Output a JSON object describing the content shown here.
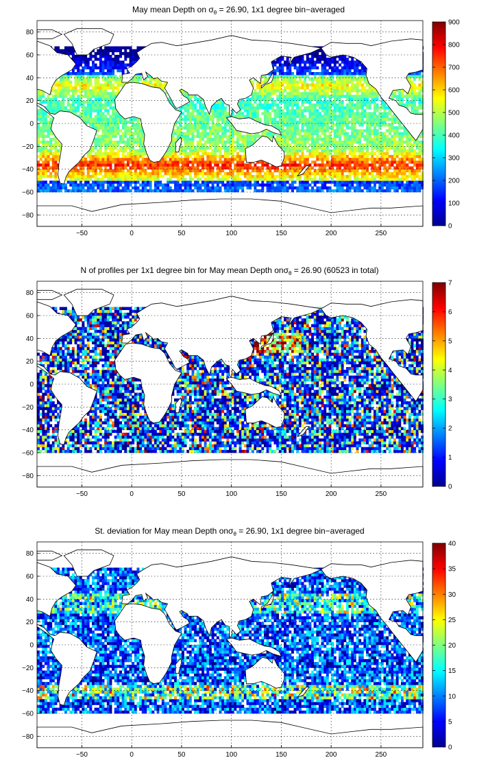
{
  "panels": [
    {
      "title_pre": "May mean Depth on ",
      "title_sigma": "σ",
      "title_sub": "θ",
      "title_post": " = 26.90, 1x1 degree bin−averaged",
      "colorbar": {
        "min": 0,
        "max": 900,
        "ticks": [
          "0",
          "100",
          "200",
          "300",
          "400",
          "500",
          "600",
          "700",
          "800",
          "900"
        ]
      },
      "field": "depth"
    },
    {
      "title_pre": "N of profiles per 1x1 degree bin for May mean Depth on",
      "title_sigma": "σ",
      "title_sub": "θ",
      "title_post": " = 26.90 (60523 in total)",
      "colorbar": {
        "min": 0,
        "max": 7,
        "ticks": [
          "0",
          "1",
          "2",
          "3",
          "4",
          "5",
          "6",
          "7"
        ]
      },
      "field": "count"
    },
    {
      "title_pre": "St. deviation for May mean Depth on",
      "title_sigma": "σ",
      "title_sub": "θ",
      "title_post": " = 26.90, 1x1 degree bin−averaged",
      "colorbar": {
        "min": 0,
        "max": 40,
        "ticks": [
          "0",
          "5",
          "10",
          "15",
          "20",
          "25",
          "30",
          "35",
          "40"
        ]
      },
      "field": "std"
    }
  ],
  "axes": {
    "x_ticks": [
      "−50",
      "0",
      "50",
      "100",
      "150",
      "200",
      "250"
    ],
    "x_values": [
      -50,
      0,
      50,
      100,
      150,
      200,
      250
    ],
    "y_ticks": [
      "80",
      "60",
      "40",
      "20",
      "0",
      "−20",
      "−40",
      "−60",
      "−80"
    ],
    "y_values": [
      80,
      60,
      40,
      20,
      0,
      -20,
      -40,
      -60,
      -80
    ],
    "xlim": [
      -95,
      292
    ],
    "ylim": [
      -90,
      90
    ]
  },
  "colormap": "jet"
}
